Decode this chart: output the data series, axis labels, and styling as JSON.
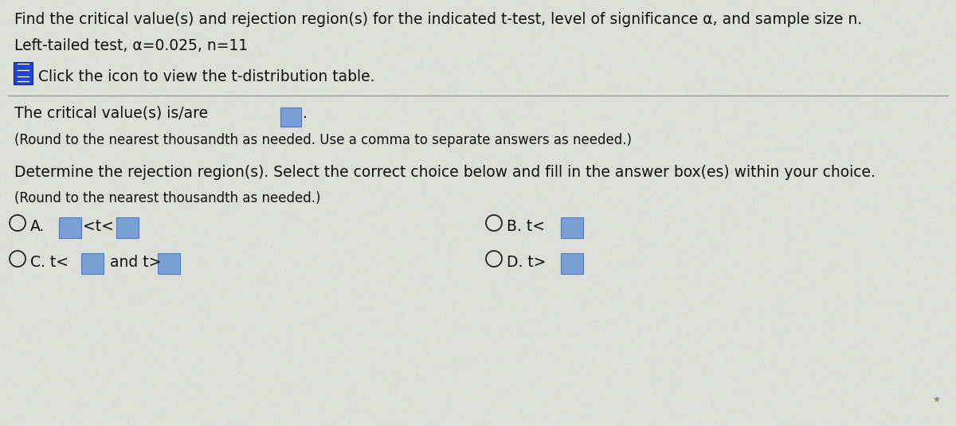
{
  "bg_color": "#dde0d8",
  "line1": "Find the critical value(s) and rejection region(s) for the indicated t-test, level of significance α, and sample size n.",
  "line2": "Left-tailed test, α​=​0.025, n​=​11",
  "line3": "Click the icon to view the t-distribution table.",
  "line4": "The critical value(s) is/are",
  "line5": "(Round to the nearest thousandth as needed. Use a comma to separate answers as needed.)",
  "line6a": "Determine the rejection region(s). Select the correct choice below and fill in the answer box(es) within your choice.",
  "line6b": "(Round to the nearest thousandth as needed.)",
  "body_color": "#111111",
  "radio_color": "#222222",
  "box_fill": "#7a9fd4",
  "box_edge": "#5577bb",
  "icon_fill": "#2244cc",
  "icon_line": "#ffffff",
  "sep_color": "#999999",
  "font_size": 13.5,
  "font_size_small": 12.0,
  "star_color": "#888866"
}
